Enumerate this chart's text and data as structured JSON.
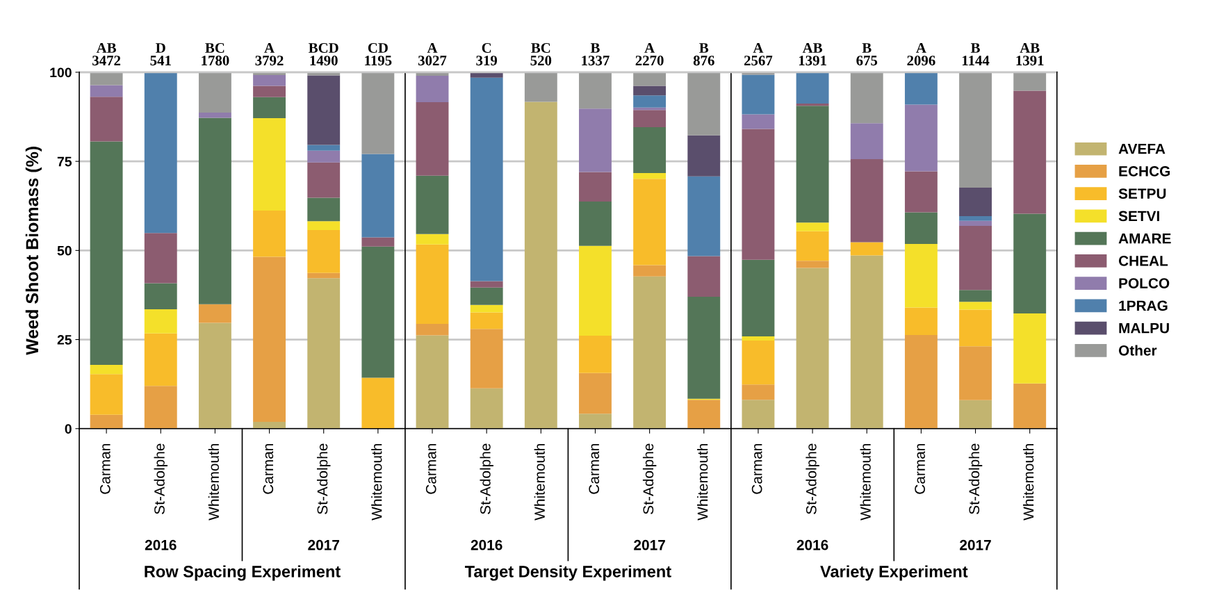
{
  "chart_data": {
    "type": "bar",
    "stacked": true,
    "ylabel": "Weed Shoot Biomass (%)",
    "categories": [
      "Carman",
      "St-Adolphe",
      "Whitemouth",
      "Carman",
      "St-Adolphe",
      "Whitemouth",
      "Carman",
      "St-Adolphe",
      "Whitemouth",
      "Carman",
      "St-Adolphe",
      "Whitemouth",
      "Carman",
      "St-Adolphe",
      "Whitemouth",
      "Carman",
      "St-Adolphe",
      "Whitemouth"
    ],
    "series": [
      {
        "name": "AVEFA",
        "color": "#c2b470",
        "values": [
          0,
          0,
          29.7,
          1.9,
          42.2,
          0,
          26.2,
          11.3,
          91.7,
          4.2,
          42.7,
          0,
          8.1,
          45.1,
          48.6,
          0,
          8.0,
          0
        ]
      },
      {
        "name": "ECHCG",
        "color": "#e6a045",
        "values": [
          3.9,
          12.0,
          5.2,
          46.3,
          1.5,
          0,
          3.2,
          16.7,
          0,
          11.4,
          3.2,
          8.1,
          4.3,
          2.0,
          0,
          26.3,
          15.1,
          12.7
        ]
      },
      {
        "name": "SETPU",
        "color": "#f8bc2a",
        "values": [
          11.4,
          14.7,
          0,
          13.0,
          12.0,
          14.3,
          22.3,
          4.6,
          0,
          10.5,
          24.2,
          0,
          12.3,
          8.3,
          3.7,
          7.7,
          10.3,
          0
        ]
      },
      {
        "name": "SETVI",
        "color": "#f4e02a",
        "values": [
          2.6,
          6.8,
          0,
          25.9,
          2.5,
          0,
          2.9,
          2.1,
          0,
          25.2,
          1.6,
          0.3,
          1.2,
          2.4,
          0,
          17.8,
          2.2,
          19.6
        ]
      },
      {
        "name": "AMARE",
        "color": "#547658",
        "values": [
          62.7,
          7.3,
          52.3,
          5.9,
          6.6,
          36.8,
          16.4,
          4.9,
          0,
          12.4,
          12.9,
          28.6,
          21.5,
          32.8,
          0,
          8.9,
          3.3,
          28.0
        ]
      },
      {
        "name": "CHEAL",
        "color": "#8c5c70",
        "values": [
          12.5,
          14.1,
          0,
          3.2,
          9.9,
          2.6,
          20.6,
          1.8,
          0,
          8.3,
          4.8,
          11.4,
          36.7,
          0.6,
          23.3,
          11.5,
          18.0,
          34.5
        ]
      },
      {
        "name": "POLCO",
        "color": "#907cac",
        "values": [
          3.3,
          0,
          1.5,
          3.0,
          3.3,
          0,
          7.4,
          0,
          0,
          17.8,
          0.7,
          0,
          4.1,
          0,
          10.1,
          18.7,
          1.4,
          0
        ]
      },
      {
        "name": "1PRAG",
        "color": "#5080ac",
        "values": [
          0,
          45.1,
          0,
          0,
          1.6,
          23.4,
          0,
          57.1,
          0,
          0,
          3.4,
          22.4,
          11.1,
          8.8,
          0,
          9.1,
          1.3,
          0
        ]
      },
      {
        "name": "MALPU",
        "color": "#5a4e6c",
        "values": [
          0,
          0,
          0,
          0,
          19.5,
          0,
          0,
          1.5,
          0,
          0,
          2.7,
          11.5,
          0,
          0,
          0,
          0,
          8.0,
          0
        ]
      },
      {
        "name": "Other",
        "color": "#999a98",
        "values": [
          3.6,
          0,
          11.3,
          0.8,
          0.9,
          22.9,
          1.0,
          0,
          8.3,
          10.2,
          3.8,
          17.7,
          0.7,
          0,
          14.3,
          0,
          32.4,
          5.2
        ]
      }
    ],
    "totals": [
      "AB\n3472",
      "D\n541",
      "BC\n1780",
      "A\n3792",
      "BCD\n1490",
      "CD\n1195",
      "A\n3027",
      "C\n319",
      "BC\n520",
      "B\n1337",
      "A\n2270",
      "B\n876",
      "A\n2567",
      "AB\n1391",
      "B\n675",
      "A\n2096",
      "B\n1144",
      "AB\n1391"
    ],
    "annotations": [
      "2016",
      "2017",
      "2016",
      "2017",
      "2016",
      "2017",
      "Row Spacing Experiment",
      "Target Density Experiment",
      "Variety Experiment"
    ],
    "ylim": [
      0,
      100
    ],
    "yticks": [
      0,
      25,
      50,
      75,
      100
    ],
    "grid": "y",
    "legend": "right"
  }
}
